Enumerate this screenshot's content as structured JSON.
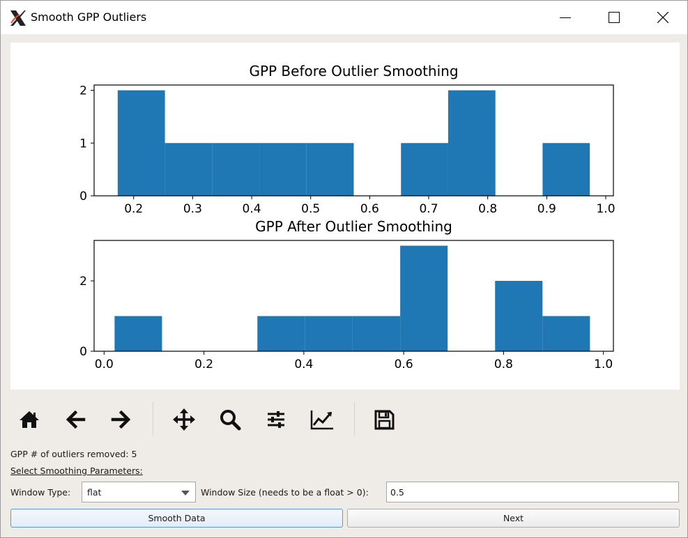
{
  "window": {
    "title": "Smooth GPP Outliers"
  },
  "chart_data": [
    {
      "type": "bar",
      "title": "GPP Before Outlier Smoothing",
      "xlabel": "",
      "ylabel": "",
      "xlim": [
        0.133,
        1.013
      ],
      "ylim": [
        0,
        2.1
      ],
      "xticks": [
        "0.2",
        "0.3",
        "0.4",
        "0.5",
        "0.6",
        "0.7",
        "0.8",
        "0.9",
        "1.0"
      ],
      "yticks": [
        "0",
        "1",
        "2"
      ],
      "bins": [
        {
          "x0": 0.173,
          "x1": 0.253,
          "value": 2
        },
        {
          "x0": 0.253,
          "x1": 0.333,
          "value": 1
        },
        {
          "x0": 0.333,
          "x1": 0.413,
          "value": 1
        },
        {
          "x0": 0.413,
          "x1": 0.493,
          "value": 1
        },
        {
          "x0": 0.493,
          "x1": 0.573,
          "value": 1
        },
        {
          "x0": 0.573,
          "x1": 0.653,
          "value": 0
        },
        {
          "x0": 0.653,
          "x1": 0.733,
          "value": 1
        },
        {
          "x0": 0.733,
          "x1": 0.813,
          "value": 2
        },
        {
          "x0": 0.813,
          "x1": 0.893,
          "value": 0
        },
        {
          "x0": 0.893,
          "x1": 0.973,
          "value": 1
        }
      ],
      "color": "#1f77b4",
      "grid": false
    },
    {
      "type": "bar",
      "title": "GPP After Outlier Smoothing",
      "xlabel": "",
      "ylabel": "",
      "xlim": [
        -0.02,
        1.02
      ],
      "ylim": [
        0,
        3.15
      ],
      "xticks": [
        "0.0",
        "0.2",
        "0.4",
        "0.6",
        "0.8",
        "1.0"
      ],
      "yticks": [
        "0",
        "2"
      ],
      "bins": [
        {
          "x0": 0.021,
          "x1": 0.116,
          "value": 1
        },
        {
          "x0": 0.116,
          "x1": 0.212,
          "value": 0
        },
        {
          "x0": 0.212,
          "x1": 0.307,
          "value": 0
        },
        {
          "x0": 0.307,
          "x1": 0.402,
          "value": 1
        },
        {
          "x0": 0.402,
          "x1": 0.497,
          "value": 1
        },
        {
          "x0": 0.497,
          "x1": 0.593,
          "value": 1
        },
        {
          "x0": 0.593,
          "x1": 0.688,
          "value": 3
        },
        {
          "x0": 0.688,
          "x1": 0.783,
          "value": 0
        },
        {
          "x0": 0.783,
          "x1": 0.878,
          "value": 2
        },
        {
          "x0": 0.878,
          "x1": 0.973,
          "value": 1
        }
      ],
      "color": "#1f77b4",
      "grid": false
    }
  ],
  "toolbar": {
    "tools": [
      {
        "name": "home-icon"
      },
      {
        "name": "back-arrow-icon"
      },
      {
        "name": "forward-arrow-icon"
      },
      {
        "name": "pan-icon"
      },
      {
        "name": "zoom-icon"
      },
      {
        "name": "subplots-config-icon"
      },
      {
        "name": "edit-axes-icon"
      },
      {
        "name": "save-icon"
      }
    ]
  },
  "status": {
    "outliers_removed": "GPP # of outliers removed: 5"
  },
  "params": {
    "section_label": "Select Smoothing Parameters:",
    "window_type_label": "Window Type:",
    "window_type_value": "flat",
    "window_size_label": "Window Size (needs to be a float > 0):",
    "window_size_value": "0.5"
  },
  "buttons": {
    "smooth_label": "Smooth Data",
    "next_label": "Next"
  }
}
